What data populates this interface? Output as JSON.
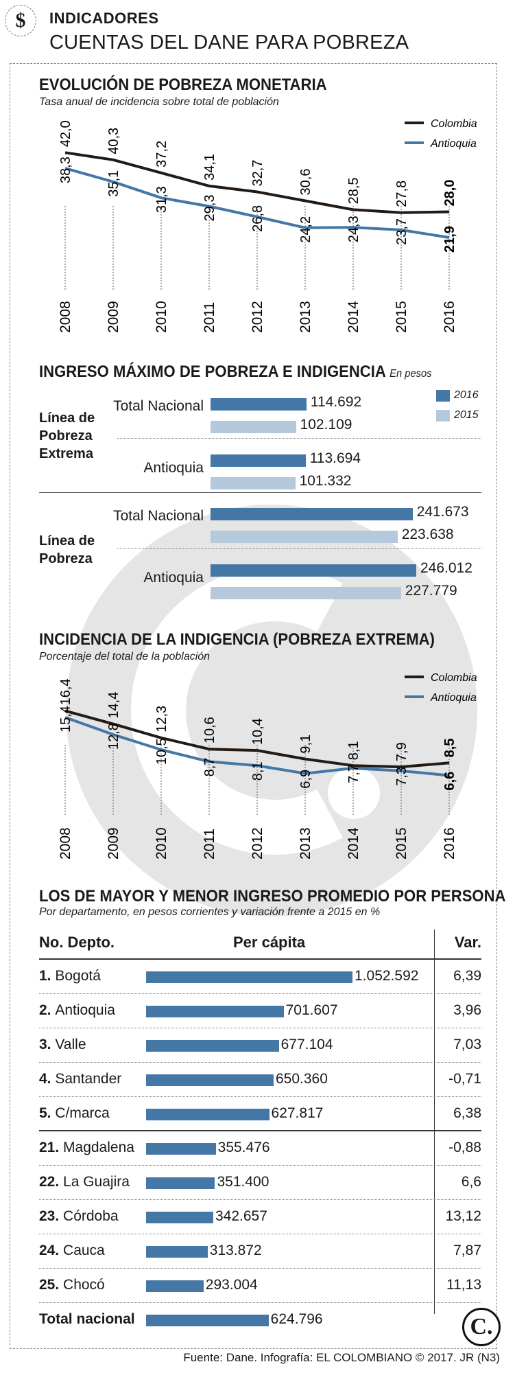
{
  "header": {
    "icon": "dollar-sign-icon",
    "icon_glyph": "$",
    "kicker": "INDICADORES",
    "headline": "CUENTAS DEL DANE PARA POBREZA"
  },
  "colors": {
    "colombia": "#231a14",
    "antioquia": "#4477a6",
    "bar2016": "#4477a6",
    "bar2015": "#b6c8dc"
  },
  "chart_data": [
    {
      "type": "line",
      "title": "EVOLUCIÓN DE POBREZA MONETARIA",
      "subtitle": "Tasa anual de incidencia sobre total de población",
      "x": [
        "2008",
        "2009",
        "2010",
        "2011",
        "2012",
        "2013",
        "2014",
        "2015",
        "2016"
      ],
      "series": [
        {
          "name": "Colombia",
          "values": [
            42.0,
            40.3,
            37.2,
            34.1,
            32.7,
            30.6,
            28.5,
            27.8,
            28.0
          ],
          "labels": [
            "42,0",
            "40,3",
            "37,2",
            "34,1",
            "32,7",
            "30,6",
            "28,5",
            "27,8",
            "28,0"
          ]
        },
        {
          "name": "Antioquia",
          "values": [
            38.3,
            35.1,
            31.3,
            29.3,
            26.8,
            24.2,
            24.3,
            23.7,
            21.9
          ],
          "labels": [
            "38,3",
            "35,1",
            "31,3",
            "29,3",
            "26,8",
            "24,2",
            "24,3",
            "23,7",
            "21,9"
          ]
        }
      ],
      "ylim": [
        18,
        44
      ],
      "legend": "top-right"
    },
    {
      "type": "bar",
      "title": "INGRESO MÁXIMO DE POBREZA E INDIGENCIA",
      "unit": "En pesos",
      "legend": [
        "2016",
        "2015"
      ],
      "groups": [
        {
          "label": "Línea de Pobreza Extrema",
          "categories": [
            {
              "name": "Total Nacional",
              "v2016": 114692,
              "v2015": 102109,
              "l2016": "114.692",
              "l2015": "102.109"
            },
            {
              "name": "Antioquia",
              "v2016": 113694,
              "v2015": 101332,
              "l2016": "113.694",
              "l2015": "101.332"
            }
          ]
        },
        {
          "label": "Línea de Pobreza",
          "categories": [
            {
              "name": "Total Nacional",
              "v2016": 241673,
              "v2015": 223638,
              "l2016": "241.673",
              "l2015": "223.638"
            },
            {
              "name": "Antioquia",
              "v2016": 246012,
              "v2015": 227779,
              "l2016": "246.012",
              "l2015": "227.779"
            }
          ]
        }
      ]
    },
    {
      "type": "line",
      "title": "INCIDENCIA DE LA INDIGENCIA (POBREZA EXTREMA)",
      "subtitle": "Porcentaje del total de la población",
      "x": [
        "2008",
        "2009",
        "2010",
        "2011",
        "2012",
        "2013",
        "2014",
        "2015",
        "2016"
      ],
      "series": [
        {
          "name": "Colombia",
          "values": [
            16.4,
            14.4,
            12.3,
            10.6,
            10.4,
            9.1,
            8.1,
            7.9,
            8.5
          ],
          "labels": [
            "16,4",
            "14,4",
            "12,3",
            "10,6",
            "10,4",
            "9,1",
            "8,1",
            "7,9",
            "8,5"
          ]
        },
        {
          "name": "Antioquia",
          "values": [
            15.4,
            12.8,
            10.5,
            8.7,
            8.1,
            6.9,
            7.7,
            7.3,
            6.6
          ],
          "labels": [
            "15,4",
            "12,8",
            "10,5",
            "8,7",
            "8,1",
            "6,9",
            "7,7",
            "7,3",
            "6,6"
          ]
        }
      ],
      "ylim": [
        5,
        18
      ],
      "legend": "top-right"
    },
    {
      "type": "table",
      "title": "LOS DE MAYOR Y MENOR INGRESO PROMEDIO POR PERSONA",
      "subtitle": "Por departamento, en pesos corrientes y variación frente a 2015 en %",
      "columns": [
        "No. Depto.",
        "Per cápita",
        "Var."
      ],
      "rows": [
        {
          "rank": "1.",
          "name": "Bogotá",
          "value": 1052592,
          "label": "1.052.592",
          "var": "6,39"
        },
        {
          "rank": "2.",
          "name": "Antioquia",
          "value": 701607,
          "label": "701.607",
          "var": "3,96"
        },
        {
          "rank": "3.",
          "name": "Valle",
          "value": 677104,
          "label": "677.104",
          "var": "7,03"
        },
        {
          "rank": "4.",
          "name": "Santander",
          "value": 650360,
          "label": "650.360",
          "var": "-0,71"
        },
        {
          "rank": "5.",
          "name": "C/marca",
          "value": 627817,
          "label": "627.817",
          "var": "6,38"
        },
        {
          "rank": "21.",
          "name": "Magdalena",
          "value": 355476,
          "label": "355.476",
          "var": "-0,88"
        },
        {
          "rank": "22.",
          "name": "La Guajira",
          "value": 351400,
          "label": "351.400",
          "var": "6,6"
        },
        {
          "rank": "23.",
          "name": "Córdoba",
          "value": 342657,
          "label": "342.657",
          "var": "13,12"
        },
        {
          "rank": "24.",
          "name": "Cauca",
          "value": 313872,
          "label": "313.872",
          "var": "7,87"
        },
        {
          "rank": "25.",
          "name": "Chocó",
          "value": 293004,
          "label": "293.004",
          "var": "11,13"
        },
        {
          "rank": "",
          "name": "Total nacional",
          "value": 624796,
          "label": "624.796",
          "var": ""
        }
      ]
    }
  ],
  "logo": "C.",
  "footer": "Fuente: Dane. Infografía: EL COLOMBIANO © 2017. JR (N3)"
}
